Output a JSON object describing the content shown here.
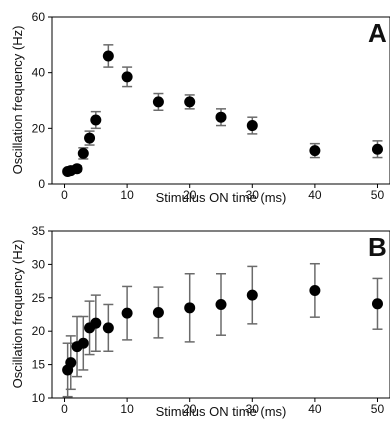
{
  "chart_data": [
    {
      "type": "scatter",
      "panel_label": "A",
      "xlabel": "Stimulus ON time (ms)",
      "ylabel": "Oscillation frequency (Hz)",
      "xlim": [
        -2,
        52
      ],
      "ylim": [
        0,
        60
      ],
      "xticks": [
        0,
        10,
        20,
        30,
        40,
        50
      ],
      "yticks": [
        0,
        20,
        40,
        60
      ],
      "grid": false,
      "series": [
        {
          "marker_color": "#000000",
          "errorbar_color": "#6b6b6b",
          "points": [
            {
              "x": 0.5,
              "y": 4.5,
              "err": 0.8
            },
            {
              "x": 1,
              "y": 4.8,
              "err": 0.8
            },
            {
              "x": 2,
              "y": 5.5,
              "err": 1.0
            },
            {
              "x": 3,
              "y": 11,
              "err": 2.0
            },
            {
              "x": 4,
              "y": 16.5,
              "err": 2.5
            },
            {
              "x": 5,
              "y": 23,
              "err": 3.0
            },
            {
              "x": 7,
              "y": 46,
              "err": 4.0
            },
            {
              "x": 10,
              "y": 38.5,
              "err": 3.5
            },
            {
              "x": 15,
              "y": 29.5,
              "err": 3.0
            },
            {
              "x": 20,
              "y": 29.5,
              "err": 2.5
            },
            {
              "x": 25,
              "y": 24,
              "err": 3.0
            },
            {
              "x": 30,
              "y": 21,
              "err": 3.0
            },
            {
              "x": 40,
              "y": 12,
              "err": 2.5
            },
            {
              "x": 50,
              "y": 12.5,
              "err": 3.0
            }
          ]
        }
      ]
    },
    {
      "type": "scatter",
      "panel_label": "B",
      "xlabel": "Stimulus ON time (ms)",
      "ylabel": "Oscillation frequency (Hz)",
      "xlim": [
        -2,
        52
      ],
      "ylim": [
        10,
        35
      ],
      "xticks": [
        0,
        10,
        20,
        30,
        40,
        50
      ],
      "yticks": [
        10,
        15,
        20,
        25,
        30,
        35
      ],
      "grid": false,
      "series": [
        {
          "marker_color": "#000000",
          "errorbar_color": "#6b6b6b",
          "points": [
            {
              "x": 0.5,
              "y": 14.2,
              "err": 4.0
            },
            {
              "x": 1,
              "y": 15.3,
              "err": 4.0
            },
            {
              "x": 2,
              "y": 17.7,
              "err": 4.5
            },
            {
              "x": 3,
              "y": 18.2,
              "err": 4.0
            },
            {
              "x": 4,
              "y": 20.5,
              "err": 4.0
            },
            {
              "x": 5,
              "y": 21.2,
              "err": 4.2
            },
            {
              "x": 7,
              "y": 20.5,
              "err": 3.5
            },
            {
              "x": 10,
              "y": 22.7,
              "err": 4.0
            },
            {
              "x": 15,
              "y": 22.8,
              "err": 3.8
            },
            {
              "x": 20,
              "y": 23.5,
              "err": 5.1
            },
            {
              "x": 25,
              "y": 24,
              "err": 4.6
            },
            {
              "x": 30,
              "y": 25.4,
              "err": 4.3
            },
            {
              "x": 40,
              "y": 26.1,
              "err": 4.0
            },
            {
              "x": 50,
              "y": 24.1,
              "err": 3.8
            }
          ]
        }
      ]
    }
  ]
}
